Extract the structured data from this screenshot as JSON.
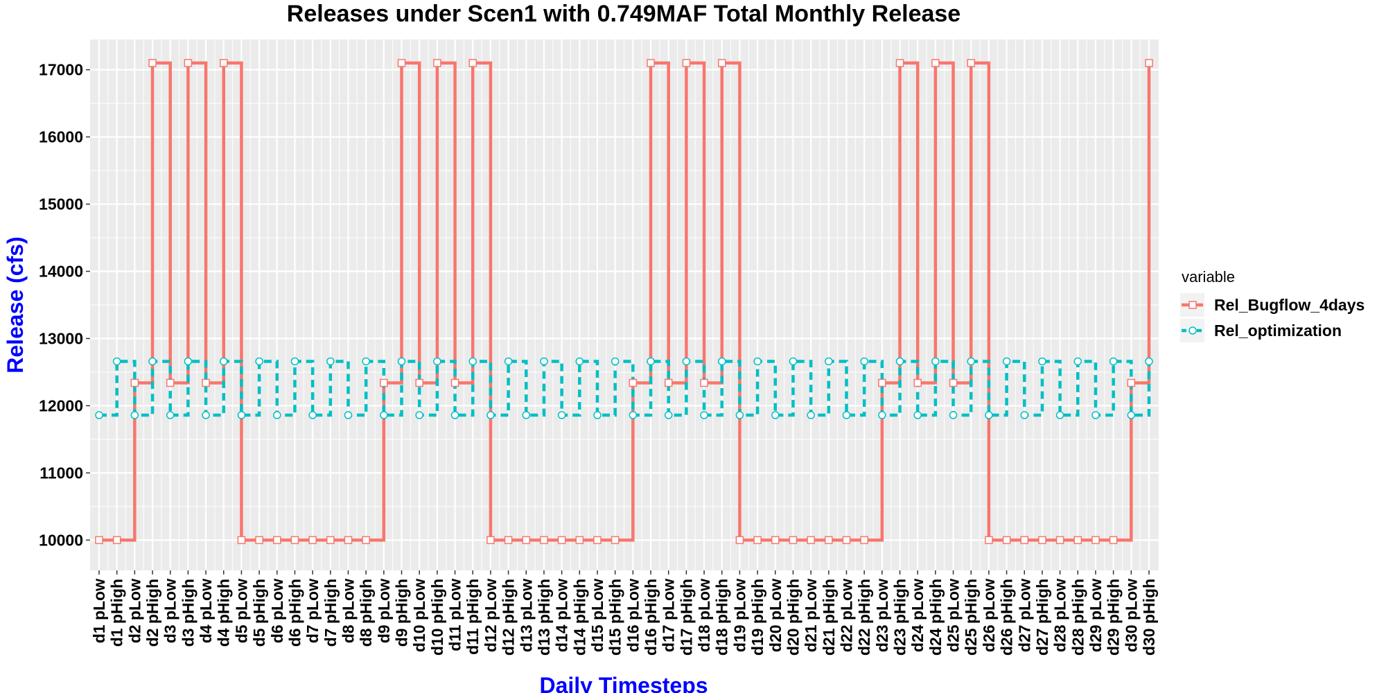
{
  "chart_data": {
    "type": "line",
    "step": true,
    "title": "Releases under Scen1 with 0.749MAF Total Monthly Release",
    "xlabel": "Daily Timesteps",
    "ylabel": "Release (cfs)",
    "ylim": [
      9550,
      17450
    ],
    "yticks": [
      10000,
      11000,
      12000,
      13000,
      14000,
      15000,
      16000,
      17000
    ],
    "grid": true,
    "legend_title": "variable",
    "legend_position": "right",
    "label_color": "#0000ff",
    "panel_color": "#ebebeb",
    "categories": [
      "d1 pLow",
      "d1 pHigh",
      "d2 pLow",
      "d2 pHigh",
      "d3 pLow",
      "d3 pHigh",
      "d4 pLow",
      "d4 pHigh",
      "d5 pLow",
      "d5 pHigh",
      "d6 pLow",
      "d6 pHigh",
      "d7 pLow",
      "d7 pHigh",
      "d8 pLow",
      "d8 pHigh",
      "d9 pLow",
      "d9 pHigh",
      "d10 pLow",
      "d10 pHigh",
      "d11 pLow",
      "d11 pHigh",
      "d12 pLow",
      "d12 pHigh",
      "d13 pLow",
      "d13 pHigh",
      "d14 pLow",
      "d14 pHigh",
      "d15 pLow",
      "d15 pHigh",
      "d16 pLow",
      "d16 pHigh",
      "d17 pLow",
      "d17 pHigh",
      "d18 pLow",
      "d18 pHigh",
      "d19 pLow",
      "d19 pHigh",
      "d20 pLow",
      "d20 pHigh",
      "d21 pLow",
      "d21 pHigh",
      "d22 pLow",
      "d22 pHigh",
      "d23 pLow",
      "d23 pHigh",
      "d24 pLow",
      "d24 pHigh",
      "d25 pLow",
      "d25 pHigh",
      "d26 pLow",
      "d26 pHigh",
      "d27 pLow",
      "d27 pHigh",
      "d28 pLow",
      "d28 pHigh",
      "d29 pLow",
      "d29 pHigh",
      "d30 pLow",
      "d30 pHigh"
    ],
    "series": [
      {
        "name": "Rel_Bugflow_4days",
        "color": "#f8766d",
        "dash": "solid",
        "marker": "square",
        "values": [
          10000,
          10000,
          12340,
          17100,
          12340,
          17100,
          12340,
          17100,
          10000,
          10000,
          10000,
          10000,
          10000,
          10000,
          10000,
          10000,
          12340,
          17100,
          12340,
          17100,
          12340,
          17100,
          10000,
          10000,
          10000,
          10000,
          10000,
          10000,
          10000,
          10000,
          12340,
          17100,
          12340,
          17100,
          12340,
          17100,
          10000,
          10000,
          10000,
          10000,
          10000,
          10000,
          10000,
          10000,
          12340,
          17100,
          12340,
          17100,
          12340,
          17100,
          10000,
          10000,
          10000,
          10000,
          10000,
          10000,
          10000,
          10000,
          12340,
          17100
        ]
      },
      {
        "name": "Rel_optimization",
        "color": "#00bfc4",
        "dash": "dashed",
        "marker": "circle",
        "values": [
          11860,
          12660,
          11860,
          12660,
          11860,
          12660,
          11860,
          12660,
          11860,
          12660,
          11860,
          12660,
          11860,
          12660,
          11860,
          12660,
          11860,
          12660,
          11860,
          12660,
          11860,
          12660,
          11860,
          12660,
          11860,
          12660,
          11860,
          12660,
          11860,
          12660,
          11860,
          12660,
          11860,
          12660,
          11860,
          12660,
          11860,
          12660,
          11860,
          12660,
          11860,
          12660,
          11860,
          12660,
          11860,
          12660,
          11860,
          12660,
          11860,
          12660,
          11860,
          12660,
          11860,
          12660,
          11860,
          12660,
          11860,
          12660,
          11860,
          12660
        ]
      }
    ]
  }
}
